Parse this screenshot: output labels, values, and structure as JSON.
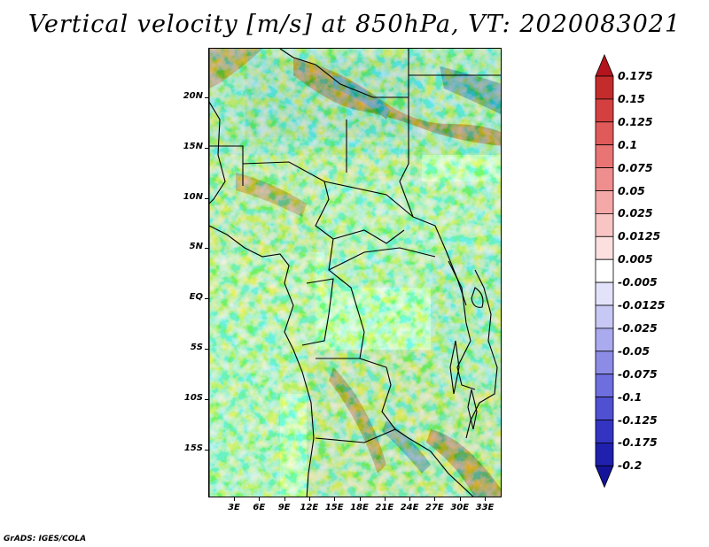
{
  "title": "Vertical velocity [m/s] at 850hPa, VT: 2020083021",
  "credit": "GrADS: IGES/COLA",
  "map": {
    "lat_ticks": [
      "20N",
      "15N",
      "10N",
      "5N",
      "EQ",
      "5S",
      "10S",
      "15S"
    ],
    "lon_ticks": [
      "3E",
      "6E",
      "9E",
      "12E",
      "15E",
      "18E",
      "21E",
      "24E",
      "27E",
      "30E",
      "33E"
    ]
  },
  "colorbar": {
    "levels": [
      "0.175",
      "0.15",
      "0.125",
      "0.1",
      "0.075",
      "0.05",
      "0.025",
      "0.0125",
      "0.005",
      "-0.005",
      "-0.0125",
      "-0.025",
      "-0.05",
      "-0.075",
      "-0.1",
      "-0.125",
      "-0.175",
      "-0.2"
    ],
    "colors": [
      "#b4141e",
      "#c42c2c",
      "#d44040",
      "#e05a5a",
      "#e87474",
      "#ee8e8e",
      "#f4a8a8",
      "#f8c4c4",
      "#fce0e0",
      "#ffffff",
      "#e2e2fa",
      "#c8c8f4",
      "#aaaaee",
      "#8c8ce6",
      "#6e6ede",
      "#5050d2",
      "#3434c2",
      "#2020ae",
      "#14149a"
    ]
  }
}
